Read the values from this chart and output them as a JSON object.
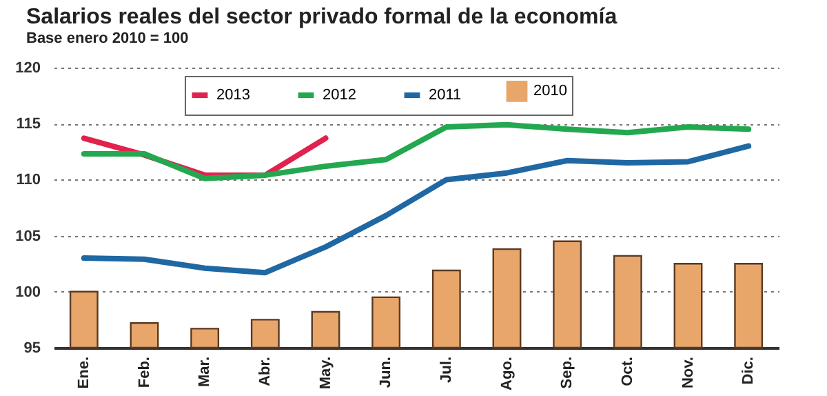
{
  "chart_data": {
    "type": "line",
    "title": "Salarios reales del sector privado formal de la economía",
    "subtitle": "Base enero 2010 = 100",
    "categories": [
      "Ene.",
      "Feb.",
      "Mar.",
      "Abr.",
      "May.",
      "Jun.",
      "Jul.",
      "Ago.",
      "Sep.",
      "Oct.",
      "Nov.",
      "Dic."
    ],
    "series": [
      {
        "name": "2013",
        "color": "#e0234e",
        "values": [
          113.7,
          112.2,
          110.4,
          110.4,
          113.7,
          null,
          null,
          null,
          null,
          null,
          null,
          null
        ]
      },
      {
        "name": "2012",
        "color": "#23a850",
        "values": [
          112.3,
          112.3,
          110.1,
          110.4,
          111.2,
          111.8,
          114.7,
          114.9,
          114.5,
          114.2,
          114.7,
          114.5
        ]
      },
      {
        "name": "2011",
        "color": "#1f68a3",
        "values": [
          103.0,
          102.9,
          102.1,
          101.7,
          104.0,
          106.8,
          110.0,
          110.6,
          111.7,
          111.5,
          111.6,
          113.0
        ]
      },
      {
        "name": "2010",
        "type": "bar",
        "color": "#e9a66b",
        "values": [
          100.0,
          97.2,
          96.7,
          97.5,
          98.2,
          99.5,
          101.9,
          103.8,
          104.5,
          103.2,
          102.5,
          102.5
        ]
      }
    ],
    "ylim": [
      95,
      120
    ],
    "yticks": [
      95,
      100,
      105,
      110,
      115,
      120
    ],
    "grid": "y",
    "legend": "top"
  }
}
